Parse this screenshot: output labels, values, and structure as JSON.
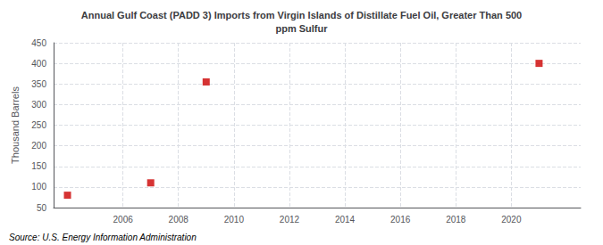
{
  "chart_data": {
    "type": "scatter",
    "title": "Annual Gulf Coast (PADD 3) Imports from Virgin Islands of Distillate Fuel Oil, Greater Than 500\nppm Sulfur",
    "ylabel": "Thousand Barrels",
    "annotations": [
      "Source: U.S. Energy Information Administration"
    ],
    "x": [
      2004,
      2007,
      2009,
      2021
    ],
    "values": [
      80,
      110,
      355,
      400
    ],
    "color": "#cc0000",
    "marker": "square",
    "xlim": [
      2003.5,
      2022.5
    ],
    "xticks": [
      2006,
      2008,
      2010,
      2012,
      2014,
      2016,
      2018,
      2020
    ],
    "ylim": [
      50,
      450
    ],
    "yticks": [
      50,
      100,
      150,
      200,
      250,
      300,
      350,
      400,
      450
    ],
    "grid": true
  }
}
